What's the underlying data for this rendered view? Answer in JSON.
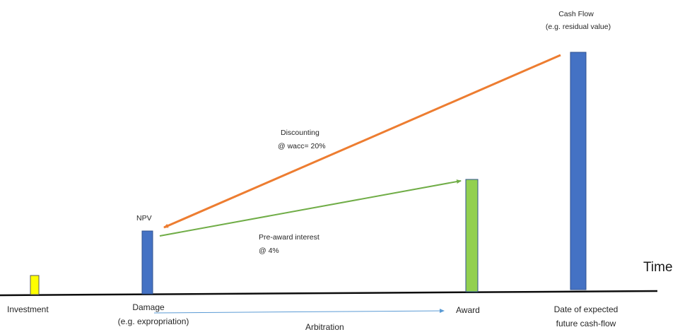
{
  "labels": {
    "cash_flow_title": "Cash Flow",
    "cash_flow_subtitle": "(e.g. residual value)",
    "discounting_title": "Discounting",
    "discounting_rate": "@ wacc= 20%",
    "npv": "NPV",
    "pre_award_title": "Pre-award interest",
    "pre_award_rate": "@ 4%",
    "time_axis": "Time",
    "investment": "Investment",
    "damage_title": "Damage",
    "damage_subtitle": "(e.g. expropriation)",
    "arbitration": "Arbitration",
    "award": "Award",
    "date_expected_line1": "Date of expected",
    "date_expected_line2": "future cash-flow"
  },
  "bars": [
    {
      "name": "investment",
      "color": "#ffff00"
    },
    {
      "name": "damage-npv",
      "color": "#4472c4"
    },
    {
      "name": "award",
      "color": "#92d050"
    },
    {
      "name": "future-cash-flow",
      "color": "#4472c4"
    }
  ],
  "arrows": {
    "discounting_color": "#ed7d31",
    "pre_award_color": "#70ad47",
    "arbitration_color": "#5b9bd5"
  },
  "colors": {
    "axis": "#0d0d0d",
    "bar_outline": "#2f528f"
  }
}
